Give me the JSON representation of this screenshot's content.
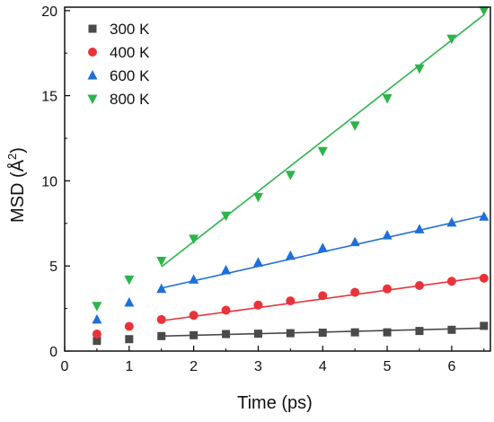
{
  "chart_data": {
    "type": "scatter",
    "xlabel": "Time (ps)",
    "ylabel_main": "MSD (Å",
    "ylabel_sup": "2",
    "ylabel_tail": ")",
    "xlim": [
      0,
      6.6
    ],
    "ylim": [
      0,
      20.2
    ],
    "x_ticks": [
      0,
      1,
      2,
      3,
      4,
      5,
      6
    ],
    "y_ticks": [
      0,
      5,
      10,
      15,
      20
    ],
    "legend_position": "top-left",
    "grid": false,
    "series": [
      {
        "name": "300 K",
        "color": "#4a4a4a",
        "marker": "square",
        "x": [
          0.5,
          1.0,
          1.5,
          2.0,
          2.5,
          3.0,
          3.5,
          4.0,
          4.5,
          5.0,
          5.5,
          6.0,
          6.5
        ],
        "y": [
          0.6,
          0.7,
          0.88,
          0.93,
          1.0,
          1.02,
          1.05,
          1.08,
          1.1,
          1.1,
          1.18,
          1.25,
          1.48
        ],
        "fit": {
          "x": [
            1.5,
            6.5
          ],
          "y": [
            0.88,
            1.35
          ]
        }
      },
      {
        "name": "400 K",
        "color": "#e8333a",
        "marker": "circle",
        "x": [
          0.5,
          1.0,
          1.5,
          2.0,
          2.5,
          3.0,
          3.5,
          4.0,
          4.5,
          5.0,
          5.5,
          6.0,
          6.5
        ],
        "y": [
          1.0,
          1.45,
          1.85,
          2.1,
          2.4,
          2.7,
          2.95,
          3.25,
          3.45,
          3.65,
          3.85,
          4.1,
          4.28
        ],
        "fit": {
          "x": [
            1.5,
            6.5
          ],
          "y": [
            1.78,
            4.35
          ]
        }
      },
      {
        "name": "600 K",
        "color": "#1f6fd6",
        "marker": "triangle-up",
        "x": [
          0.5,
          1.0,
          1.5,
          2.0,
          2.5,
          3.0,
          3.5,
          4.0,
          4.5,
          5.0,
          5.5,
          6.0,
          6.5
        ],
        "y": [
          1.85,
          2.85,
          3.65,
          4.2,
          4.75,
          5.2,
          5.6,
          6.05,
          6.4,
          6.8,
          7.15,
          7.55,
          7.9
        ],
        "fit": {
          "x": [
            1.5,
            6.5
          ],
          "y": [
            3.7,
            7.95
          ]
        }
      },
      {
        "name": "800 K",
        "color": "#2cb34a",
        "marker": "triangle-down",
        "x": [
          0.5,
          1.0,
          1.5,
          2.0,
          2.5,
          3.0,
          3.5,
          4.0,
          4.5,
          5.0,
          5.5,
          6.0,
          6.5
        ],
        "y": [
          2.65,
          4.2,
          5.3,
          6.6,
          7.95,
          9.05,
          10.35,
          11.75,
          13.25,
          14.85,
          16.6,
          18.35,
          20.0
        ],
        "fit": {
          "x": [
            1.5,
            6.5
          ],
          "y": [
            4.95,
            19.75
          ]
        }
      }
    ]
  }
}
